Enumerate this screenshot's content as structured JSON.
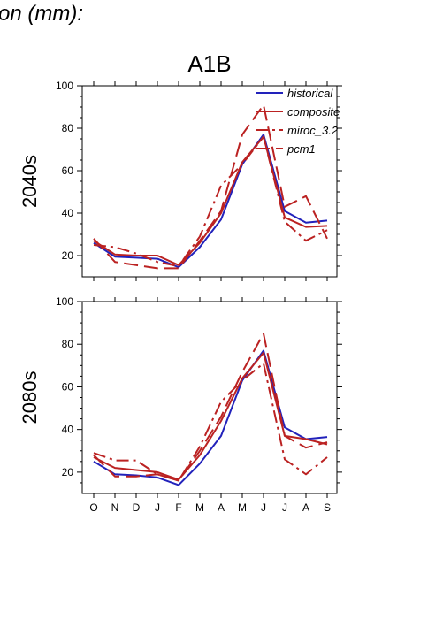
{
  "header": {
    "title_fragment": "tion (mm):"
  },
  "chart_data": {
    "type": "line",
    "title": "A1B",
    "categories": [
      "O",
      "N",
      "D",
      "J",
      "F",
      "M",
      "A",
      "M",
      "J",
      "J",
      "A",
      "S"
    ],
    "ylim": [
      10,
      100
    ],
    "yticks": [
      20,
      40,
      60,
      80,
      100
    ],
    "grid": false,
    "legend_position": "top-right",
    "legend": [
      "historical",
      "composite",
      "miroc_3.2",
      "pcm1"
    ],
    "colors": {
      "historical": "#2222bb",
      "composite": "#bb2222",
      "miroc_3.2": "#bb2222",
      "pcm1": "#bb2222"
    },
    "panels": [
      {
        "label": "2040s",
        "series": [
          {
            "name": "historical",
            "style": "solid",
            "color": "#2222bb",
            "values": [
              26,
              19.5,
              19,
              18.5,
              14.5,
              24,
              37,
              63,
              77,
              41,
              35.5,
              36.5
            ]
          },
          {
            "name": "composite",
            "style": "solid",
            "color": "#bb2222",
            "values": [
              27,
              20.5,
              20,
              20,
              15.5,
              26,
              40,
              64,
              76,
              38,
              33.5,
              34
            ]
          },
          {
            "name": "miroc_3.2",
            "style": "dashdot",
            "color": "#bb2222",
            "values": [
              25,
              24,
              21,
              17,
              15,
              29,
              53,
              63,
              76,
              36,
              27,
              32
            ]
          },
          {
            "name": "pcm1",
            "style": "longdash",
            "color": "#bb2222",
            "values": [
              28,
              17,
              15.5,
              14,
              14,
              27,
              41,
              77,
              91,
              43,
              48,
              28
            ]
          }
        ]
      },
      {
        "label": "2080s",
        "series": [
          {
            "name": "historical",
            "style": "solid",
            "color": "#2222bb",
            "values": [
              25,
              19,
              18.5,
              17.5,
              14,
              24,
              37,
              63,
              77,
              41,
              35.5,
              36.5
            ]
          },
          {
            "name": "composite",
            "style": "solid",
            "color": "#bb2222",
            "values": [
              27,
              22,
              21,
              20,
              16.5,
              28,
              44,
              64,
              76,
              37,
              35.5,
              33
            ]
          },
          {
            "name": "miroc_3.2",
            "style": "dashdot",
            "color": "#bb2222",
            "values": [
              29,
              25.5,
              25.5,
              19,
              16,
              32,
              53,
              63,
              71,
              26,
              19,
              27
            ]
          },
          {
            "name": "pcm1",
            "style": "longdash",
            "color": "#bb2222",
            "values": [
              28,
              18,
              18,
              19,
              16,
              30,
              46,
              67,
              85,
              37,
              31.5,
              34
            ]
          }
        ]
      }
    ]
  }
}
